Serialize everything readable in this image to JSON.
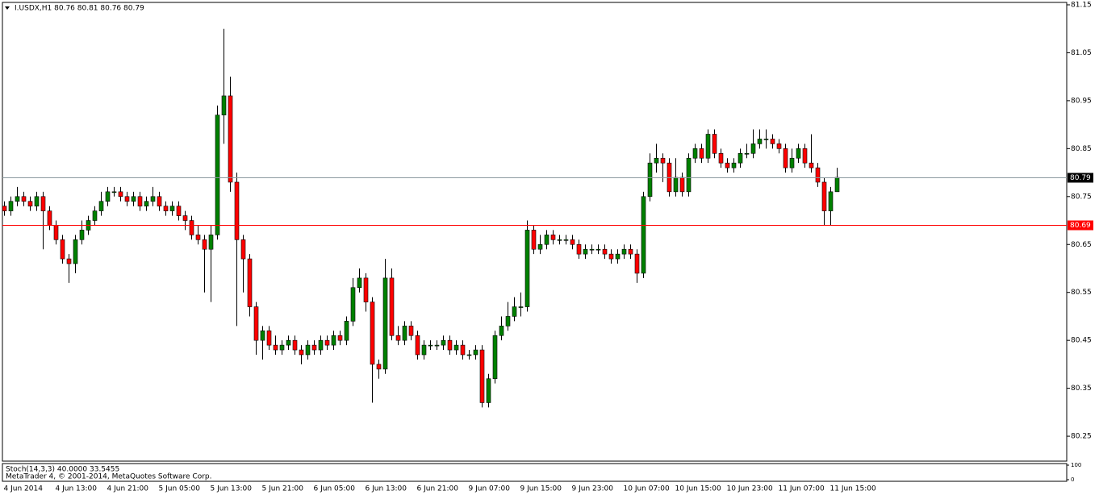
{
  "chart_data": {
    "type": "candlestick",
    "title": "I.USDX,H1  80.76 80.81 80.76 80.79",
    "categories": [
      "4 Jun 2014",
      null,
      null,
      null,
      null,
      null,
      null,
      null,
      "4 Jun 13:00",
      null,
      null,
      null,
      null,
      null,
      null,
      null,
      "4 Jun 21:00",
      null,
      null,
      null,
      null,
      null,
      null,
      null,
      "5 Jun 05:00",
      null,
      null,
      null,
      null,
      null,
      null,
      null,
      "5 Jun 13:00",
      null,
      null,
      null,
      null,
      null,
      null,
      null,
      "5 Jun 21:00",
      null,
      null,
      null,
      null,
      null,
      null,
      null,
      "6 Jun 05:00",
      null,
      null,
      null,
      null,
      null,
      null,
      null,
      "6 Jun 13:00",
      null,
      null,
      null,
      null,
      null,
      null,
      null,
      "6 Jun 21:00",
      null,
      null,
      null,
      null,
      null,
      null,
      null,
      "9 Jun 07:00",
      null,
      null,
      null,
      null,
      null,
      null,
      null,
      "9 Jun 15:00",
      null,
      null,
      null,
      null,
      null,
      null,
      null,
      "9 Jun 23:00",
      null,
      null,
      null,
      null,
      null,
      null,
      null,
      "10 Jun 07:00",
      null,
      null,
      null,
      null,
      null,
      null,
      null,
      "10 Jun 15:00",
      null,
      null,
      null,
      null,
      null,
      null,
      null,
      "10 Jun 23:00",
      null,
      null,
      null,
      null,
      null,
      null,
      null,
      "11 Jun 07:00",
      null,
      null,
      null,
      null,
      null,
      null,
      null,
      "11 Jun 15:00",
      null
    ],
    "open": [
      80.73,
      80.72,
      80.74,
      80.75,
      80.74,
      80.73,
      80.75,
      80.72,
      80.69,
      80.66,
      80.62,
      80.61,
      80.66,
      80.68,
      80.7,
      80.72,
      80.74,
      80.76,
      80.76,
      80.75,
      80.74,
      80.75,
      80.73,
      80.74,
      80.75,
      80.73,
      80.72,
      80.73,
      80.71,
      80.7,
      80.67,
      80.66,
      80.64,
      80.67,
      80.92,
      80.96,
      80.78,
      80.66,
      80.62,
      80.52,
      80.45,
      80.47,
      80.44,
      80.43,
      80.44,
      80.45,
      80.43,
      80.42,
      80.44,
      80.43,
      80.45,
      80.44,
      80.46,
      80.45,
      80.49,
      80.56,
      80.58,
      80.53,
      80.4,
      80.39,
      80.58,
      80.46,
      80.45,
      80.48,
      80.46,
      80.42,
      80.44,
      80.44,
      80.44,
      80.45,
      80.43,
      80.44,
      80.42,
      80.42,
      80.43,
      80.32,
      80.37,
      80.46,
      80.48,
      80.5,
      80.52,
      80.52,
      80.68,
      80.64,
      80.65,
      80.67,
      80.66,
      80.66,
      80.66,
      80.65,
      80.63,
      80.64,
      80.64,
      80.64,
      80.63,
      80.62,
      80.63,
      80.64,
      80.63,
      80.59,
      80.75,
      80.82,
      80.83,
      80.82,
      80.76,
      80.79,
      80.76,
      80.83,
      80.85,
      80.83,
      80.88,
      80.84,
      80.82,
      80.81,
      80.82,
      80.84,
      80.84,
      80.86,
      80.87,
      80.87,
      80.86,
      80.85,
      80.81,
      80.83,
      80.85,
      80.82,
      80.81,
      80.78,
      80.72,
      80.76
    ],
    "high": [
      80.74,
      80.75,
      80.77,
      80.76,
      80.75,
      80.76,
      80.76,
      80.73,
      80.7,
      80.67,
      80.63,
      80.67,
      80.7,
      80.71,
      80.73,
      80.76,
      80.77,
      80.77,
      80.77,
      80.76,
      80.76,
      80.76,
      80.75,
      80.77,
      80.76,
      80.74,
      80.74,
      80.74,
      80.72,
      80.71,
      80.69,
      80.67,
      80.69,
      80.94,
      81.1,
      81.0,
      80.8,
      80.67,
      80.63,
      80.53,
      80.48,
      80.48,
      80.46,
      80.45,
      80.46,
      80.46,
      80.44,
      80.45,
      80.45,
      80.46,
      80.46,
      80.47,
      80.47,
      80.5,
      80.58,
      80.6,
      80.59,
      80.54,
      80.41,
      80.62,
      80.6,
      80.48,
      80.49,
      80.49,
      80.47,
      80.45,
      80.45,
      80.45,
      80.46,
      80.46,
      80.45,
      80.45,
      80.43,
      80.44,
      80.44,
      80.38,
      80.47,
      80.5,
      80.53,
      80.54,
      80.55,
      80.7,
      80.69,
      80.67,
      80.68,
      80.68,
      80.67,
      80.67,
      80.67,
      80.66,
      80.65,
      80.65,
      80.65,
      80.65,
      80.64,
      80.64,
      80.65,
      80.65,
      80.64,
      80.76,
      80.84,
      80.86,
      80.84,
      80.83,
      80.83,
      80.8,
      80.84,
      80.86,
      80.86,
      80.89,
      80.89,
      80.85,
      80.83,
      80.83,
      80.85,
      80.86,
      80.89,
      80.89,
      80.89,
      80.88,
      80.87,
      80.86,
      80.85,
      80.86,
      80.86,
      80.88,
      80.82,
      80.79,
      80.77,
      80.81
    ],
    "low": [
      80.71,
      80.71,
      80.73,
      80.73,
      80.72,
      80.72,
      80.64,
      80.68,
      80.65,
      80.61,
      80.57,
      80.59,
      80.65,
      80.67,
      80.69,
      80.71,
      80.73,
      80.75,
      80.74,
      80.73,
      80.73,
      80.72,
      80.72,
      80.73,
      80.72,
      80.71,
      80.71,
      80.7,
      80.68,
      80.66,
      80.65,
      80.55,
      80.53,
      80.66,
      80.86,
      80.76,
      80.48,
      80.55,
      80.5,
      80.42,
      80.41,
      80.43,
      80.42,
      80.42,
      80.43,
      80.42,
      80.4,
      80.41,
      80.42,
      80.42,
      80.43,
      80.43,
      80.44,
      80.44,
      80.48,
      80.55,
      80.51,
      80.32,
      80.37,
      80.38,
      80.45,
      80.44,
      80.44,
      80.45,
      80.41,
      80.41,
      80.43,
      80.43,
      80.43,
      80.42,
      80.42,
      80.41,
      80.41,
      80.41,
      80.31,
      80.31,
      80.36,
      80.45,
      80.47,
      80.49,
      80.5,
      80.51,
      80.63,
      80.63,
      80.64,
      80.65,
      80.65,
      80.65,
      80.64,
      80.62,
      80.62,
      80.63,
      80.63,
      80.62,
      80.61,
      80.61,
      80.62,
      80.62,
      80.57,
      80.58,
      80.74,
      80.8,
      80.78,
      80.75,
      80.75,
      80.75,
      80.75,
      80.82,
      80.82,
      80.82,
      80.83,
      80.81,
      80.8,
      80.8,
      80.81,
      80.83,
      80.83,
      80.85,
      80.85,
      80.85,
      80.84,
      80.8,
      80.8,
      80.82,
      80.81,
      80.8,
      80.77,
      80.69,
      80.69,
      80.76
    ],
    "close": [
      80.72,
      80.74,
      80.75,
      80.74,
      80.73,
      80.75,
      80.72,
      80.69,
      80.66,
      80.62,
      80.61,
      80.66,
      80.68,
      80.7,
      80.72,
      80.74,
      80.76,
      80.76,
      80.75,
      80.74,
      80.75,
      80.73,
      80.74,
      80.75,
      80.73,
      80.72,
      80.73,
      80.71,
      80.7,
      80.67,
      80.66,
      80.64,
      80.67,
      80.92,
      80.96,
      80.78,
      80.66,
      80.62,
      80.52,
      80.45,
      80.47,
      80.44,
      80.43,
      80.44,
      80.45,
      80.43,
      80.42,
      80.44,
      80.43,
      80.45,
      80.44,
      80.46,
      80.45,
      80.49,
      80.56,
      80.58,
      80.53,
      80.4,
      80.39,
      80.58,
      80.46,
      80.45,
      80.48,
      80.46,
      80.42,
      80.44,
      80.44,
      80.44,
      80.45,
      80.43,
      80.44,
      80.42,
      80.42,
      80.43,
      80.32,
      80.37,
      80.46,
      80.48,
      80.5,
      80.52,
      80.52,
      80.68,
      80.64,
      80.65,
      80.67,
      80.66,
      80.66,
      80.66,
      80.65,
      80.63,
      80.64,
      80.64,
      80.64,
      80.63,
      80.62,
      80.63,
      80.64,
      80.63,
      80.59,
      80.75,
      80.82,
      80.83,
      80.82,
      80.76,
      80.79,
      80.76,
      80.83,
      80.85,
      80.83,
      80.88,
      80.84,
      80.82,
      80.81,
      80.82,
      80.84,
      80.84,
      80.86,
      80.87,
      80.87,
      80.86,
      80.85,
      80.81,
      80.83,
      80.85,
      80.82,
      80.81,
      80.78,
      80.72,
      80.76,
      80.79
    ],
    "up_color": "#008000",
    "down_color": "#ff0000",
    "ylim": [
      80.198,
      81.155
    ],
    "yticks": [
      81.15,
      81.05,
      80.95,
      80.85,
      80.75,
      80.65,
      80.55,
      80.45,
      80.35,
      80.25
    ],
    "lines": [
      {
        "value": 80.79,
        "color": "#8c9aa0",
        "label_color": "#000000"
      },
      {
        "value": 80.69,
        "color": "#ff0000",
        "label_color": "#ff0000"
      }
    ],
    "indicator": {
      "label": "Stoch(14,3,3) 40.0000 33.5455",
      "ylim": [
        0,
        100
      ],
      "yticks": [
        100,
        0
      ]
    },
    "footer": "MetaTrader 4, © 2001-2014, MetaQuotes Software Corp."
  }
}
